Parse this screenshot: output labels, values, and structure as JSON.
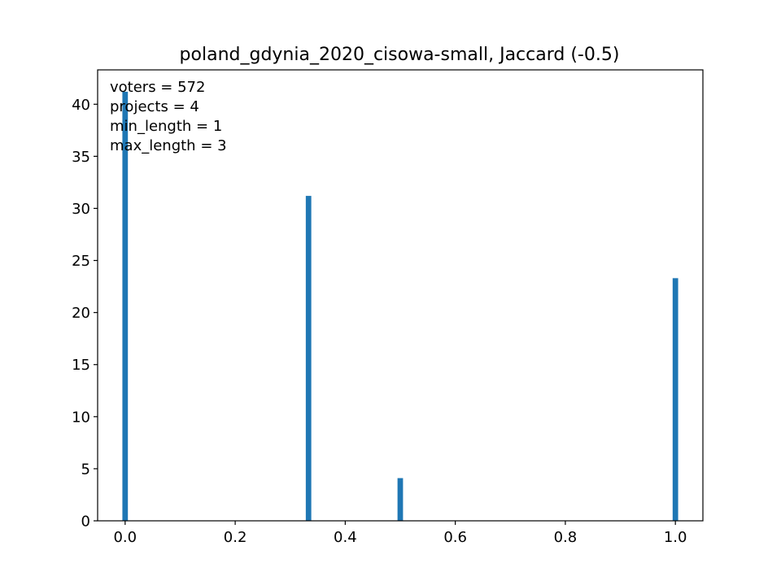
{
  "chart_data": {
    "type": "bar",
    "title": "poland_gdynia_2020_cisowa-small, Jaccard (-0.5)",
    "xlabel": "",
    "ylabel": "",
    "xlim": [
      -0.05,
      1.05
    ],
    "ylim": [
      0,
      43.3
    ],
    "bar_width": 0.01,
    "bar_color": "#1f77b4",
    "grid": false,
    "x": [
      0.0,
      0.3333,
      0.5,
      1.0
    ],
    "values": [
      41.2,
      31.2,
      4.1,
      23.3
    ],
    "xticks": [
      0.0,
      0.2,
      0.4,
      0.6,
      0.8,
      1.0
    ],
    "xtick_labels": [
      "0.0",
      "0.2",
      "0.4",
      "0.6",
      "0.8",
      "1.0"
    ],
    "yticks": [
      0,
      5,
      10,
      15,
      20,
      25,
      30,
      35,
      40
    ],
    "ytick_labels": [
      "0",
      "5",
      "10",
      "15",
      "20",
      "25",
      "30",
      "35",
      "40"
    ],
    "annotations": [
      "voters = 572",
      "projects = 4",
      "min_length = 1",
      "max_length = 3"
    ]
  }
}
